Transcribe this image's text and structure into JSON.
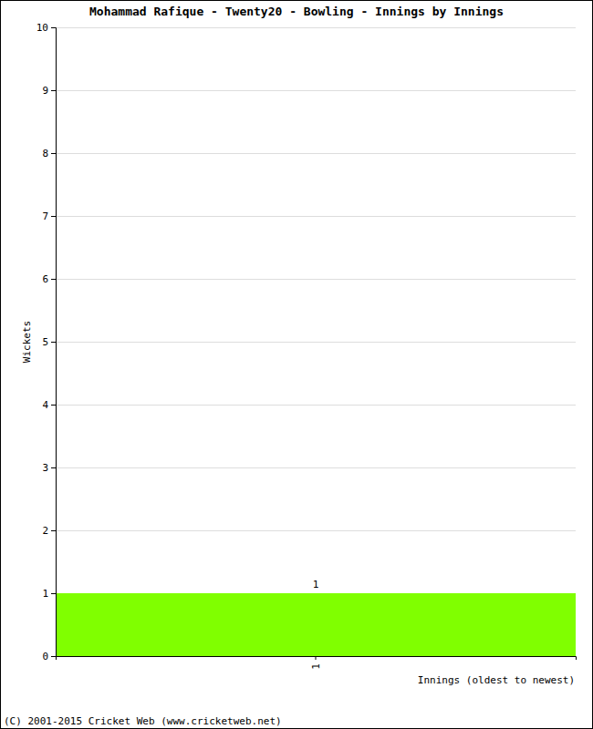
{
  "chart_data": {
    "type": "bar",
    "title": "Mohammad Rafique - Twenty20 - Bowling - Innings by Innings",
    "x_label": "Innings (oldest to newest)",
    "y_label": "Wickets",
    "categories": [
      "1"
    ],
    "values": [
      1
    ],
    "color": "#80ff00",
    "ylim": [
      0,
      10
    ],
    "yticks": [
      0,
      1,
      2,
      3,
      4,
      5,
      6,
      7,
      8,
      9,
      10
    ],
    "grid": true,
    "data_labels": true,
    "annotations": [
      "(C) 2001-2015 Cricket Web (www.cricketweb.net)"
    ]
  }
}
